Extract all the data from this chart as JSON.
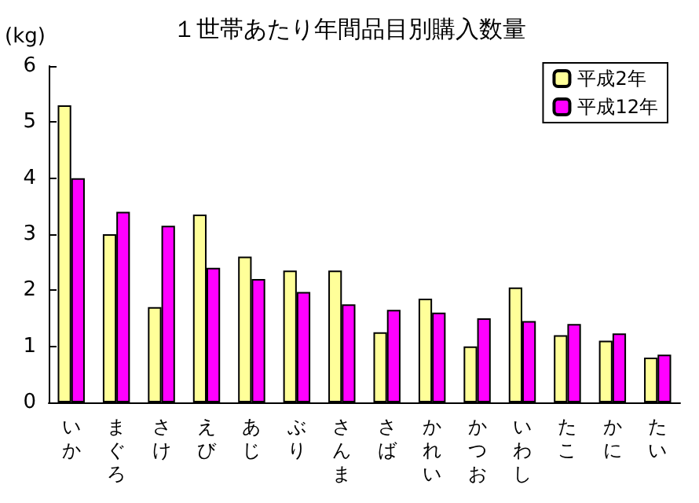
{
  "chart_data": {
    "type": "bar",
    "title": "１世帯あたり年間品目別購入数量",
    "ylabel": "(kg)",
    "categories": [
      "いか",
      "まぐろ",
      "さけ",
      "えび",
      "あじ",
      "ぶり",
      "さんま",
      "さば",
      "かれい",
      "かつお",
      "いわし",
      "たこ",
      "かに",
      "たい"
    ],
    "series": [
      {
        "name": "平成2年",
        "color": "#ffff99",
        "values": [
          5.3,
          3.0,
          1.7,
          3.35,
          2.6,
          2.35,
          2.35,
          1.25,
          1.85,
          1.0,
          2.05,
          1.2,
          1.1,
          0.8
        ]
      },
      {
        "name": "平成12年",
        "color": "#ff00ff",
        "values": [
          4.0,
          3.4,
          3.15,
          2.4,
          2.2,
          1.97,
          1.75,
          1.65,
          1.6,
          1.5,
          1.45,
          1.4,
          1.23,
          0.85
        ]
      }
    ],
    "ylim": [
      0,
      6
    ],
    "yticks": [
      0,
      1,
      2,
      3,
      4,
      5,
      6
    ],
    "grid": false,
    "legend": "top right"
  }
}
